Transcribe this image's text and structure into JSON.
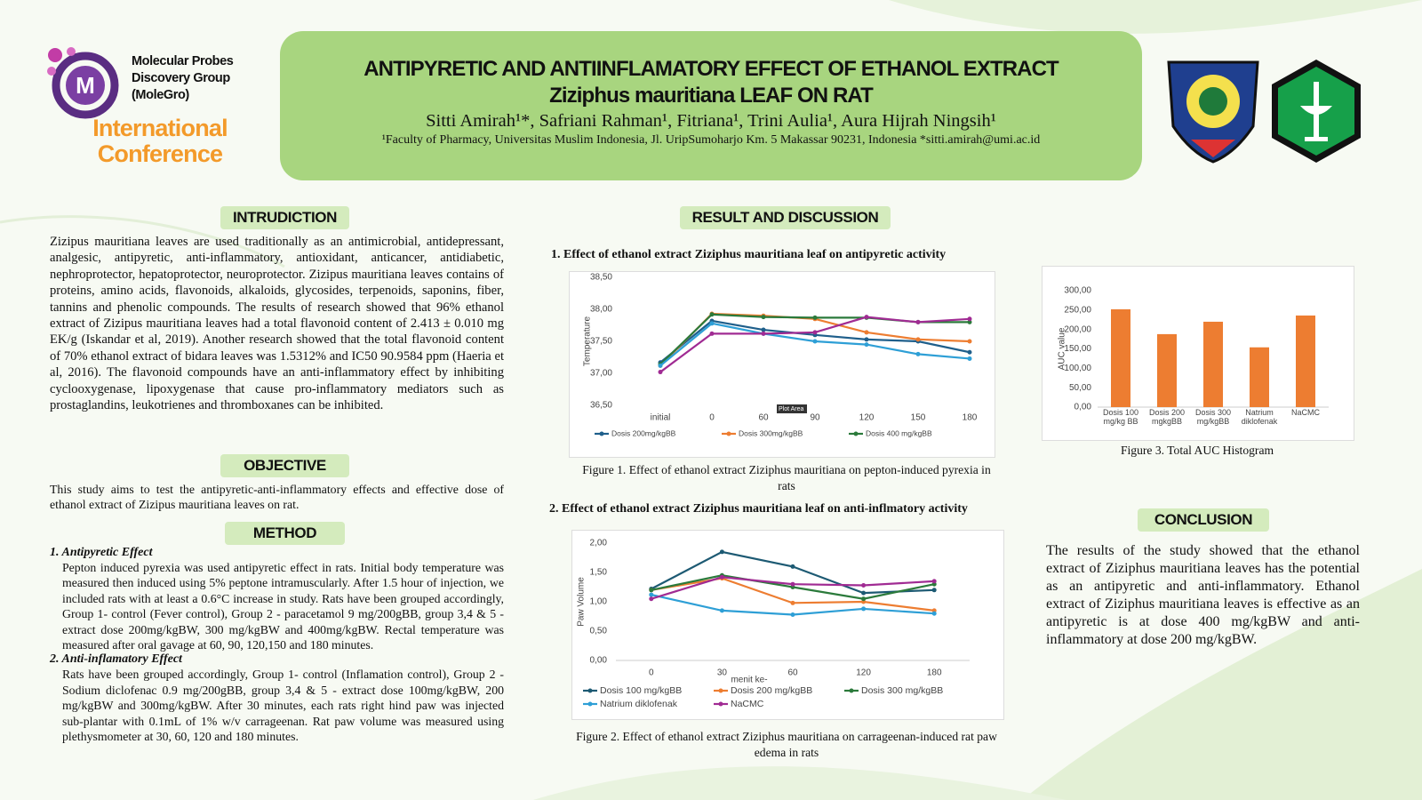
{
  "header": {
    "org": "Molecular Probes Discovery Group (MoleGro)",
    "conference": "International Conference",
    "title_line1": "ANTIPYRETIC AND ANTIINFLAMATORY EFFECT OF ETHANOL EXTRACT",
    "title_line2": "Ziziphus mauritiana LEAF ON RAT",
    "authors": "Sitti Amirah¹*, Safriani Rahman¹, Fitriana¹, Trini Aulia¹, Aura Hijrah Ningsih¹",
    "affiliation": "¹Faculty of Pharmacy, Universitas Muslim Indonesia, Jl. UripSumoharjo Km. 5 Makassar 90231, Indonesia  *sitti.amirah@umi.ac.id"
  },
  "introduction": {
    "heading": "INTRUDICTION",
    "text": "Zizipus mauritiana leaves are used traditionally as an antimicrobial, antidepressant, analgesic, antipyretic, anti-inflammatory, antioxidant, anticancer, antidiabetic, nephroprotector, hepatoprotector, neuroprotector. Zizipus mauritiana  leaves contains of proteins, amino acids, flavonoids, alkaloids, glycosides, terpenoids, saponins, fiber, tannins and phenolic compounds. The results of research showed that 96% ethanol extract of Zizipus mauritiana leaves had a total flavonoid content of 2.413 ± 0.010 mg EK/g (Iskandar et al, 2019). Another research showed that the total flavonoid content of 70% ethanol extract of bidara leaves was 1.5312% and IC50 90.9584 ppm (Haeria et al, 2016). The flavonoid compounds have an anti-inflammatory effect by inhibiting cyclooxygenase, lipoxygenase that cause pro-inflammatory mediators such as prostaglandins, leukotrienes and thromboxanes can be inhibited."
  },
  "objective": {
    "heading": "OBJECTIVE",
    "text": "This study aims to test the antipyretic-anti-inflammatory effects and effective dose of ethanol extract of Zizipus mauritiana leaves on rat."
  },
  "method": {
    "heading": "METHOD",
    "items": [
      {
        "title": "1. Antipyretic Effect",
        "text": "Pepton induced pyrexia was used antipyretic effect in rats. Initial body temperature was measured then induced using 5% peptone intramuscularly. After 1.5 hour of injection, we included rats with at least a 0.6°C increase in study.  Rats have been grouped accordingly, Group 1- control (Fever control), Group 2 - paracetamol 9 mg/200gBB, group 3,4 & 5 - extract dose 200mg/kgBW, 300 mg/kgBW and 400mg/kgBW. Rectal temperature was measured after oral gavage at 60, 90, 120,150 and 180 minutes."
      },
      {
        "title": "2. Anti-inflamatory Effect",
        "text": "Rats have been grouped accordingly, Group 1- control (Inflamation control), Group 2 - Sodium diclofenac 0.9 mg/200gBB, group 3,4 & 5 - extract dose 100mg/kgBW, 200 mg/kgBW and 300mg/kgBW. After 30 minutes, each rats right hind paw was injected sub-plantar with 0.1mL of 1% w/v carrageenan.  Rat paw volume was measured using plethysmometer at 30, 60, 120 and 180 minutes."
      }
    ]
  },
  "results": {
    "heading": "RESULT AND DISCUSSION"
  },
  "chart_data": [
    {
      "type": "line",
      "title": "1. Effect of ethanol extract Ziziphus mauritiana leaf on antipyretic activity",
      "caption": "Figure 1. Effect of ethanol extract  Ziziphus mauritiana on pepton-induced pyrexia in rats",
      "y_label": "Temperature",
      "annotation": "Plot Area",
      "categories": [
        "initial",
        "0",
        "60",
        "90",
        "120",
        "150",
        "180"
      ],
      "ylim": [
        36.5,
        38.5
      ],
      "yticks": [
        {
          "value": 36.5,
          "label": "36,50"
        },
        {
          "value": 37,
          "label": "37,00"
        },
        {
          "value": 37.5,
          "label": "37,50"
        },
        {
          "value": 38,
          "label": "38,00"
        },
        {
          "value": 38.5,
          "label": "38,50"
        }
      ],
      "grid": false,
      "series": [
        {
          "name": "Dosis 200mg/kgBB",
          "color": "#1f5f8b",
          "values": [
            37.17,
            37.82,
            37.68,
            37.6,
            37.53,
            37.5,
            37.33
          ]
        },
        {
          "name": "Dosis 300mg/kgBB",
          "color": "#ed7d31",
          "values": [
            37.12,
            37.93,
            37.9,
            37.85,
            37.64,
            37.53,
            37.5
          ]
        },
        {
          "name": "Dosis 400 mg/kgBB",
          "color": "#2b7a3b",
          "values": [
            37.14,
            37.92,
            37.88,
            37.87,
            37.87,
            37.8,
            37.8
          ]
        },
        {
          "color": "#2e9fd6",
          "values": [
            37.12,
            37.78,
            37.62,
            37.5,
            37.45,
            37.3,
            37.23
          ]
        },
        {
          "color": "#a02b93",
          "values": [
            37.02,
            37.62,
            37.62,
            37.64,
            37.88,
            37.8,
            37.85
          ]
        }
      ]
    },
    {
      "type": "line",
      "title": "2. Effect of ethanol extract Ziziphus mauritiana leaf on anti-inflmatory activity",
      "caption": "Figure 2. Effect of ethanol extract  Ziziphus mauritiana on carrageenan-induced rat paw edema in rats",
      "y_label": "Paw Volume",
      "x_label": "menit ke-",
      "categories": [
        "0",
        "30",
        "60",
        "120",
        "180"
      ],
      "ylim": [
        0,
        2
      ],
      "yticks": [
        {
          "value": 0,
          "label": "0,00"
        },
        {
          "value": 0.5,
          "label": "0,50"
        },
        {
          "value": 1,
          "label": "1,00"
        },
        {
          "value": 1.5,
          "label": "1,50"
        },
        {
          "value": 2,
          "label": "2,00"
        }
      ],
      "grid": false,
      "series": [
        {
          "name": "Dosis 100 mg/kgBB",
          "color": "#1d5a73",
          "values": [
            1.22,
            1.85,
            1.6,
            1.15,
            1.2
          ]
        },
        {
          "name": "Dosis 200 mg/kgBB",
          "color": "#ed7d31",
          "values": [
            1.2,
            1.4,
            0.98,
            1.0,
            0.85
          ]
        },
        {
          "name": "Dosis 300 mg/kgBB",
          "color": "#2b7a3b",
          "values": [
            1.2,
            1.45,
            1.25,
            1.05,
            1.3
          ]
        },
        {
          "name": "Natrium diklofenak",
          "color": "#2e9fd6",
          "values": [
            1.12,
            0.85,
            0.78,
            0.88,
            0.8
          ]
        },
        {
          "name": "NaCMC",
          "color": "#a02b93",
          "values": [
            1.05,
            1.42,
            1.3,
            1.28,
            1.35
          ]
        }
      ]
    },
    {
      "type": "bar",
      "caption": "Figure 3. Total AUC Histogram",
      "y_label": "AUC value",
      "categories": [
        "Dosis 100 mg/kg BB",
        "Dosis 200 mgkgBB",
        "Dosis 300 mg/kgBB",
        "Natrium diklofenak",
        "NaCMC"
      ],
      "values": [
        252,
        188,
        220,
        154,
        236
      ],
      "color": "#ed7d31",
      "ylim": [
        0,
        300
      ],
      "yticks": [
        {
          "value": 0,
          "label": "0,00"
        },
        {
          "value": 50,
          "label": "50,00"
        },
        {
          "value": 100,
          "label": "100,00"
        },
        {
          "value": 150,
          "label": "150,00"
        },
        {
          "value": 200,
          "label": "200,00"
        },
        {
          "value": 250,
          "label": "250,00"
        },
        {
          "value": 300,
          "label": "300,00"
        }
      ],
      "grid": false
    }
  ],
  "conclusion": {
    "heading": "CONCLUSION",
    "text": "The results of the study showed that the ethanol extract of Ziziphus mauritiana leaves has the potential as an antipyretic and anti-inflammatory. Ethanol extract of Ziziphus mauritiana leaves is effective as an antipyretic is at dose 400 mg/kgBW and anti-inflammatory at dose 200 mg/kgBW."
  }
}
